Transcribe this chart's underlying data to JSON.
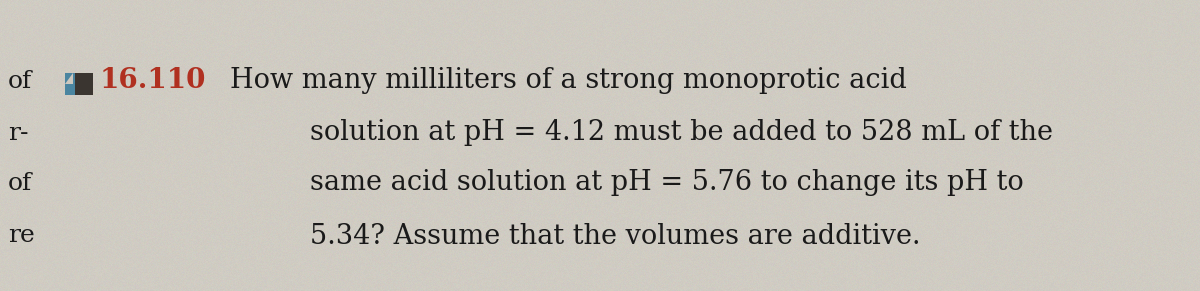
{
  "background_color": "#ccc8bf",
  "number_color": "#b03020",
  "number_text": "16.110",
  "main_text_line1": "How many milliliters of a strong monoprotic acid",
  "main_text_line2": "solution at pH = 4.12 must be added to 528 mL of the",
  "main_text_line3": "same acid solution at pH = 5.76 to change its pH to",
  "main_text_line4": "5.34? Assume that the volumes are additive.",
  "text_color": "#1a1a1a",
  "left_labels": [
    "of",
    "r-",
    "of",
    "re"
  ],
  "font_size_main": 19.5,
  "font_size_number": 20,
  "font_size_left": 18
}
